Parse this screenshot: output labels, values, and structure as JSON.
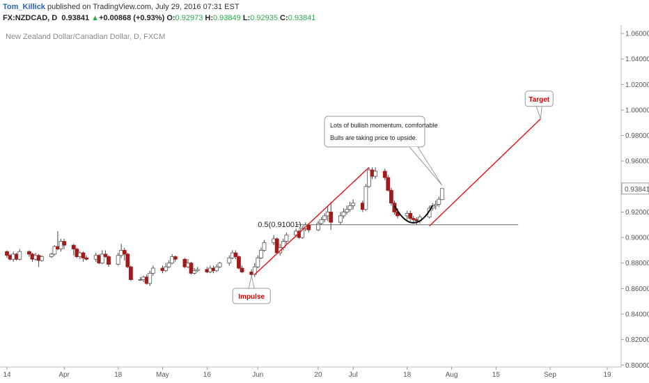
{
  "header": {
    "author": "Tom_Killick",
    "published": " published on TradingView.com, July 29, 2016 07:31 EST",
    "symbol": "FX:NZDCAD, D",
    "last": "0.93841",
    "change_arrow": "▲",
    "change": "+0.00868 (+0.93%)",
    "o_label": "O:",
    "o_value": "0.92973",
    "h_label": "H:",
    "h_value": "0.93849",
    "l_label": "L:",
    "l_value": "0.92935",
    "c_label": "C:",
    "c_value": "0.93841"
  },
  "colors": {
    "up": "#ffffff",
    "down": "#a31a1a",
    "wick": "#444444",
    "trend": "#e01e1e",
    "axis": "#555555",
    "price_badge_bg": "#ffffff"
  },
  "chart_data": {
    "type": "candlestick",
    "title": "New Zealand Dollar/Canadian Dollar, D, FXCM",
    "y_ticks": [
      "1.06000",
      "1.04000",
      "1.02000",
      "1.00000",
      "0.98000",
      "0.96000",
      "0.94000",
      "0.92000",
      "0.90000",
      "0.88000",
      "0.86000",
      "0.84000",
      "0.82000",
      "0.80000"
    ],
    "ylim": [
      0.7985,
      1.0655
    ],
    "last_price_label": "0.93841",
    "x_ticks": [
      "14",
      "Apr",
      "18",
      "May",
      "16",
      "Jun",
      "20",
      "Jul",
      "18",
      "Aug",
      "15",
      "Sep",
      "19"
    ],
    "x_tick_dates": [
      "2016-03-14",
      "2016-04-01",
      "2016-04-18",
      "2016-05-02",
      "2016-05-16",
      "2016-06-01",
      "2016-06-20",
      "2016-07-01",
      "2016-07-18",
      "2016-08-01",
      "2016-08-15",
      "2016-09-01",
      "2016-09-19"
    ],
    "candles": [
      [
        "2016-03-11",
        0.891,
        0.889,
        0.892,
        0.888
      ],
      [
        "2016-03-14",
        0.889,
        0.886,
        0.89,
        0.884
      ],
      [
        "2016-03-15",
        0.886,
        0.883,
        0.887,
        0.882
      ],
      [
        "2016-03-16",
        0.883,
        0.887,
        0.889,
        0.881
      ],
      [
        "2016-03-17",
        0.887,
        0.883,
        0.888,
        0.882
      ],
      [
        "2016-03-18",
        0.883,
        0.889,
        0.891,
        0.882
      ],
      [
        "2016-03-21",
        0.889,
        0.887,
        0.89,
        0.885
      ],
      [
        "2016-03-22",
        0.887,
        0.883,
        0.888,
        0.881
      ],
      [
        "2016-03-23",
        0.883,
        0.886,
        0.888,
        0.882
      ],
      [
        "2016-03-24",
        0.886,
        0.882,
        0.887,
        0.877
      ],
      [
        "2016-03-25",
        0.882,
        0.885,
        0.886,
        0.881
      ],
      [
        "2016-03-28",
        0.885,
        0.887,
        0.888,
        0.884
      ],
      [
        "2016-03-29",
        0.887,
        0.893,
        0.894,
        0.886
      ],
      [
        "2016-03-30",
        0.893,
        0.891,
        0.905,
        0.89
      ],
      [
        "2016-03-31",
        0.891,
        0.897,
        0.899,
        0.889
      ],
      [
        "2016-04-01",
        0.897,
        0.894,
        0.899,
        0.891
      ],
      [
        "2016-04-04",
        0.894,
        0.891,
        0.895,
        0.886
      ],
      [
        "2016-04-05",
        0.891,
        0.885,
        0.892,
        0.884
      ],
      [
        "2016-04-06",
        0.885,
        0.888,
        0.889,
        0.883
      ],
      [
        "2016-04-07",
        0.888,
        0.884,
        0.889,
        0.881
      ],
      [
        "2016-04-08",
        0.884,
        0.883,
        0.886,
        0.882
      ],
      [
        "2016-04-11",
        0.883,
        0.886,
        0.888,
        0.881
      ],
      [
        "2016-04-12",
        0.886,
        0.88,
        0.887,
        0.879
      ],
      [
        "2016-04-13",
        0.88,
        0.887,
        0.89,
        0.879
      ],
      [
        "2016-04-14",
        0.887,
        0.885,
        0.89,
        0.884
      ],
      [
        "2016-04-15",
        0.885,
        0.879,
        0.886,
        0.877
      ],
      [
        "2016-04-18",
        0.879,
        0.886,
        0.888,
        0.878
      ],
      [
        "2016-04-19",
        0.886,
        0.89,
        0.895,
        0.884
      ],
      [
        "2016-04-20",
        0.89,
        0.887,
        0.892,
        0.882
      ],
      [
        "2016-04-21",
        0.887,
        0.877,
        0.888,
        0.876
      ],
      [
        "2016-04-22",
        0.877,
        0.867,
        0.878,
        0.866
      ],
      [
        "2016-04-25",
        0.867,
        0.867,
        0.869,
        0.866
      ],
      [
        "2016-04-26",
        0.867,
        0.869,
        0.87,
        0.865
      ],
      [
        "2016-04-27",
        0.869,
        0.864,
        0.871,
        0.863
      ],
      [
        "2016-04-28",
        0.864,
        0.872,
        0.874,
        0.862
      ],
      [
        "2016-04-29",
        0.872,
        0.876,
        0.878,
        0.87
      ],
      [
        "2016-05-02",
        0.876,
        0.874,
        0.878,
        0.872
      ],
      [
        "2016-05-03",
        0.874,
        0.877,
        0.88,
        0.873
      ],
      [
        "2016-05-04",
        0.877,
        0.88,
        0.882,
        0.876
      ],
      [
        "2016-05-05",
        0.88,
        0.885,
        0.887,
        0.879
      ],
      [
        "2016-05-06",
        0.885,
        0.883,
        0.886,
        0.881
      ],
      [
        "2016-05-09",
        0.883,
        0.877,
        0.884,
        0.876
      ],
      [
        "2016-05-10",
        0.877,
        0.88,
        0.883,
        0.876
      ],
      [
        "2016-05-11",
        0.88,
        0.872,
        0.881,
        0.871
      ],
      [
        "2016-05-12",
        0.872,
        0.874,
        0.876,
        0.871
      ],
      [
        "2016-05-13",
        0.874,
        0.875,
        0.877,
        0.873
      ],
      [
        "2016-05-16",
        0.875,
        0.873,
        0.877,
        0.872
      ],
      [
        "2016-05-17",
        0.873,
        0.876,
        0.878,
        0.872
      ],
      [
        "2016-05-18",
        0.876,
        0.874,
        0.878,
        0.872
      ],
      [
        "2016-05-19",
        0.874,
        0.877,
        0.879,
        0.873
      ],
      [
        "2016-05-20",
        0.877,
        0.88,
        0.881,
        0.876
      ],
      [
        "2016-05-23",
        0.88,
        0.884,
        0.886,
        0.878
      ],
      [
        "2016-05-24",
        0.884,
        0.888,
        0.89,
        0.883
      ],
      [
        "2016-05-25",
        0.888,
        0.885,
        0.89,
        0.883
      ],
      [
        "2016-05-26",
        0.885,
        0.876,
        0.886,
        0.875
      ],
      [
        "2016-05-27",
        0.876,
        0.873,
        0.878,
        0.872
      ],
      [
        "2016-05-30",
        0.873,
        0.871,
        0.875,
        0.869
      ],
      [
        "2016-05-31",
        0.871,
        0.877,
        0.88,
        0.869
      ],
      [
        "2016-06-01",
        0.877,
        0.884,
        0.886,
        0.876
      ],
      [
        "2016-06-02",
        0.884,
        0.89,
        0.892,
        0.883
      ],
      [
        "2016-06-03",
        0.89,
        0.896,
        0.898,
        0.889
      ],
      [
        "2016-06-06",
        0.896,
        0.899,
        0.902,
        0.894
      ],
      [
        "2016-06-07",
        0.899,
        0.888,
        0.9,
        0.887
      ],
      [
        "2016-06-08",
        0.888,
        0.892,
        0.895,
        0.886
      ],
      [
        "2016-06-09",
        0.892,
        0.897,
        0.899,
        0.89
      ],
      [
        "2016-06-10",
        0.897,
        0.902,
        0.904,
        0.895
      ],
      [
        "2016-06-13",
        0.902,
        0.905,
        0.907,
        0.9
      ],
      [
        "2016-06-14",
        0.905,
        0.9,
        0.906,
        0.899
      ],
      [
        "2016-06-15",
        0.9,
        0.907,
        0.909,
        0.899
      ],
      [
        "2016-06-16",
        0.907,
        0.91,
        0.912,
        0.905
      ],
      [
        "2016-06-17",
        0.91,
        0.906,
        0.911,
        0.904
      ],
      [
        "2016-06-20",
        0.906,
        0.911,
        0.913,
        0.905
      ],
      [
        "2016-06-21",
        0.911,
        0.914,
        0.916,
        0.91
      ],
      [
        "2016-06-22",
        0.914,
        0.917,
        0.919,
        0.912
      ],
      [
        "2016-06-23",
        0.917,
        0.92,
        0.925,
        0.913
      ],
      [
        "2016-06-24",
        0.92,
        0.912,
        0.928,
        0.906
      ],
      [
        "2016-06-27",
        0.912,
        0.917,
        0.92,
        0.91
      ],
      [
        "2016-06-28",
        0.917,
        0.92,
        0.923,
        0.915
      ],
      [
        "2016-06-29",
        0.92,
        0.922,
        0.925,
        0.918
      ],
      [
        "2016-06-30",
        0.922,
        0.925,
        0.928,
        0.92
      ],
      [
        "2016-07-01",
        0.925,
        0.927,
        0.93,
        0.922
      ],
      [
        "2016-07-04",
        0.927,
        0.922,
        0.929,
        0.92
      ],
      [
        "2016-07-05",
        0.922,
        0.94,
        0.942,
        0.921
      ],
      [
        "2016-07-06",
        0.94,
        0.953,
        0.955,
        0.939
      ],
      [
        "2016-07-07",
        0.953,
        0.948,
        0.955,
        0.946
      ],
      [
        "2016-07-08",
        0.948,
        0.952,
        0.955,
        0.946
      ],
      [
        "2016-07-11",
        0.952,
        0.947,
        0.954,
        0.945
      ],
      [
        "2016-07-12",
        0.947,
        0.937,
        0.949,
        0.936
      ],
      [
        "2016-07-13",
        0.937,
        0.927,
        0.939,
        0.925
      ],
      [
        "2016-07-14",
        0.927,
        0.92,
        0.929,
        0.918
      ],
      [
        "2016-07-15",
        0.92,
        0.917,
        0.923,
        0.915
      ],
      [
        "2016-07-18",
        0.917,
        0.919,
        0.921,
        0.914
      ],
      [
        "2016-07-19",
        0.919,
        0.915,
        0.921,
        0.913
      ],
      [
        "2016-07-20",
        0.915,
        0.914,
        0.917,
        0.912
      ],
      [
        "2016-07-21",
        0.914,
        0.913,
        0.916,
        0.91
      ],
      [
        "2016-07-22",
        0.913,
        0.916,
        0.918,
        0.911
      ],
      [
        "2016-07-25",
        0.916,
        0.923,
        0.925,
        0.915
      ],
      [
        "2016-07-26",
        0.923,
        0.925,
        0.927,
        0.921
      ],
      [
        "2016-07-27",
        0.925,
        0.926,
        0.929,
        0.922
      ],
      [
        "2016-07-28",
        0.926,
        0.93,
        0.932,
        0.924
      ],
      [
        "2016-07-29",
        0.92973,
        0.93841,
        0.93849,
        0.92935
      ]
    ],
    "annotations": {
      "fib_label": "0.5(0.91001)",
      "fib_level": 0.91001,
      "impulse_label": "Impulse",
      "target_label": "Target",
      "callout_line1": "Lots of bullish momentum, comfortable",
      "callout_line2": "Bulls are taking price to upside."
    },
    "trend_lines": [
      {
        "name": "impulse-line",
        "from": [
          "2016-05-31",
          0.871
        ],
        "to": [
          "2016-07-06",
          0.955
        ]
      },
      {
        "name": "target-line",
        "from": [
          "2016-07-25",
          0.909
        ],
        "to": [
          "2016-08-29",
          0.993
        ]
      }
    ],
    "grid": false,
    "legend": "none"
  }
}
